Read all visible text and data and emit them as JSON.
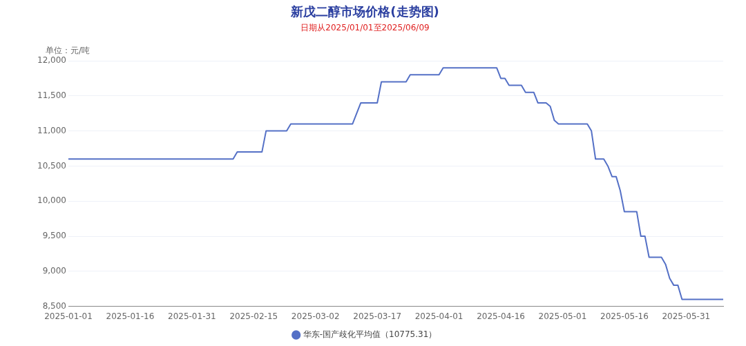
{
  "chart_data": {
    "type": "line",
    "title": "新戊二醇市场价格(走势图)",
    "subtitle": "日期从2025/01/01至2025/06/09",
    "ylabel": "单位：元/吨",
    "xlim": [
      "2025-01-01",
      "2025-06-09"
    ],
    "xticks": [
      "2025-01-01",
      "2025-01-16",
      "2025-01-31",
      "2025-02-15",
      "2025-03-02",
      "2025-03-17",
      "2025-04-01",
      "2025-04-16",
      "2025-05-01",
      "2025-05-16",
      "2025-05-31"
    ],
    "ylim": [
      8500,
      12000
    ],
    "yticks": [
      {
        "value": 8500,
        "label": "8,500"
      },
      {
        "value": 9000,
        "label": "9,000"
      },
      {
        "value": 9500,
        "label": "9,500"
      },
      {
        "value": 10000,
        "label": "10,000"
      },
      {
        "value": 10500,
        "label": "10,500"
      },
      {
        "value": 11000,
        "label": "11,000"
      },
      {
        "value": 11500,
        "label": "11,500"
      },
      {
        "value": 12000,
        "label": "12,000"
      }
    ],
    "grid": "y",
    "legend": "bottom",
    "marker": "none",
    "series": [
      {
        "name": "华东-国产歧化平均值（10775.31）",
        "color": "#5470c6",
        "x": [
          "2025-01-01",
          "2025-02-10",
          "2025-02-11",
          "2025-02-17",
          "2025-02-18",
          "2025-02-23",
          "2025-02-24",
          "2025-03-11",
          "2025-03-13",
          "2025-03-17",
          "2025-03-18",
          "2025-03-24",
          "2025-03-25",
          "2025-04-01",
          "2025-04-02",
          "2025-04-15",
          "2025-04-16",
          "2025-04-17",
          "2025-04-18",
          "2025-04-21",
          "2025-04-22",
          "2025-04-24",
          "2025-04-25",
          "2025-04-27",
          "2025-04-28",
          "2025-04-29",
          "2025-04-30",
          "2025-05-07",
          "2025-05-08",
          "2025-05-09",
          "2025-05-11",
          "2025-05-12",
          "2025-05-13",
          "2025-05-14",
          "2025-05-15",
          "2025-05-16",
          "2025-05-19",
          "2025-05-20",
          "2025-05-21",
          "2025-05-22",
          "2025-05-25",
          "2025-05-26",
          "2025-05-27",
          "2025-05-28",
          "2025-05-29",
          "2025-05-30",
          "2025-06-09"
        ],
        "values": [
          10600,
          10600,
          10700,
          10700,
          11000,
          11000,
          11100,
          11100,
          11400,
          11400,
          11700,
          11700,
          11800,
          11800,
          11900,
          11900,
          11750,
          11750,
          11650,
          11650,
          11550,
          11550,
          11400,
          11400,
          11350,
          11150,
          11100,
          11100,
          11000,
          10600,
          10600,
          10500,
          10350,
          10350,
          10150,
          9850,
          9850,
          9500,
          9500,
          9200,
          9200,
          9100,
          8900,
          8800,
          8800,
          8600,
          8600
        ]
      }
    ]
  }
}
